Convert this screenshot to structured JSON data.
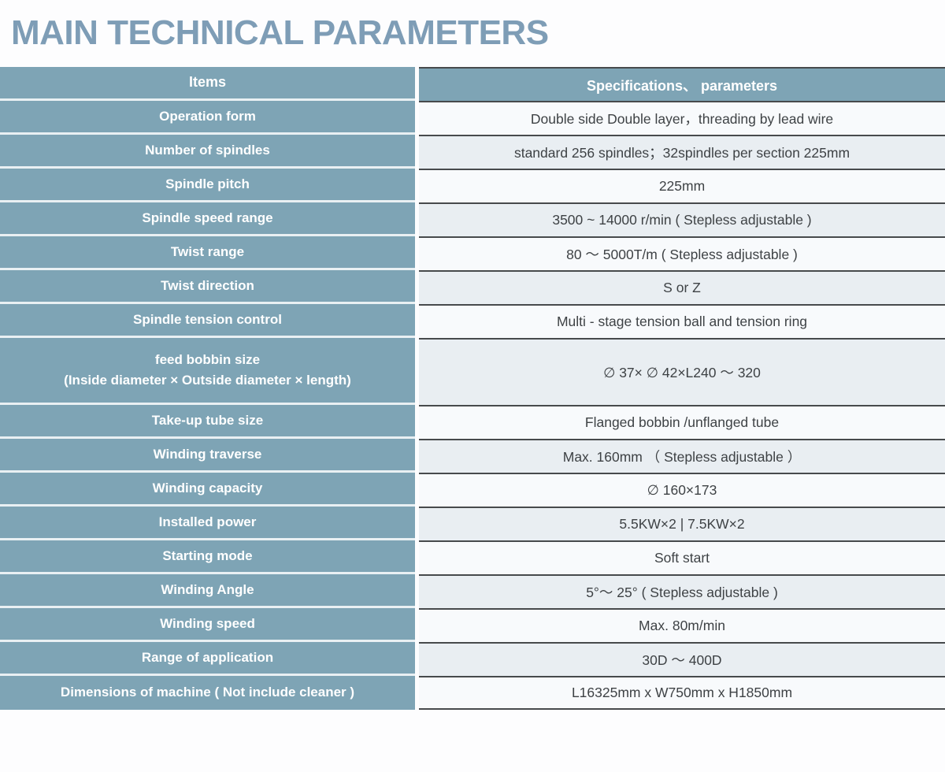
{
  "page": {
    "title": "MAIN TECHNICAL PARAMETERS"
  },
  "colors": {
    "title_blue": "#7e9db6",
    "cell_blue": "#7ea4b5",
    "row_light": "#f8fafc",
    "row_shaded": "#e9eef2",
    "border_dark": "#474a4c",
    "cell_text_white": "#ffffff",
    "value_text": "#3e4245"
  },
  "table": {
    "header": {
      "items": "Items",
      "specs": "Specifications、 parameters"
    },
    "rows": [
      {
        "item": "Operation form",
        "value": "Double side Double layer，threading by lead wire"
      },
      {
        "item": "Number of spindles",
        "value": "standard  256 spindles；32spindles per section 225mm"
      },
      {
        "item": "Spindle pitch",
        "value": "225mm"
      },
      {
        "item": "Spindle speed range",
        "value": "3500 ~ 14000 r/min ( Stepless adjustable )"
      },
      {
        "item": "Twist range",
        "value": "80 ～ 5000T/m ( Stepless adjustable )"
      },
      {
        "item": "Twist direction",
        "value": "S or Z"
      },
      {
        "item": "Spindle tension control",
        "value": "Multi - stage tension ball and tension ring"
      },
      {
        "item": "feed bobbin size\n(Inside diameter × Outside diameter × length)",
        "value": "∅ 37× ∅ 42×L240 ～ 320"
      },
      {
        "item": "Take-up tube size",
        "value": "Flanged bobbin /unflanged tube"
      },
      {
        "item": "Winding traverse",
        "value": "Max. 160mm （ Stepless adjustable ）"
      },
      {
        "item": "Winding capacity",
        "value": "∅ 160×173"
      },
      {
        "item": "Installed power",
        "value": "5.5KW×2   |   7.5KW×2"
      },
      {
        "item": "Starting mode",
        "value": "Soft start"
      },
      {
        "item": "Winding Angle",
        "value": "5°～ 25° ( Stepless adjustable )"
      },
      {
        "item": "Winding speed",
        "value": "Max. 80m/min"
      },
      {
        "item": "Range of application",
        "value": "30D ～ 400D"
      },
      {
        "item": "Dimensions of machine ( Not include cleaner )",
        "value": "L16325mm x W750mm x H1850mm"
      }
    ]
  }
}
